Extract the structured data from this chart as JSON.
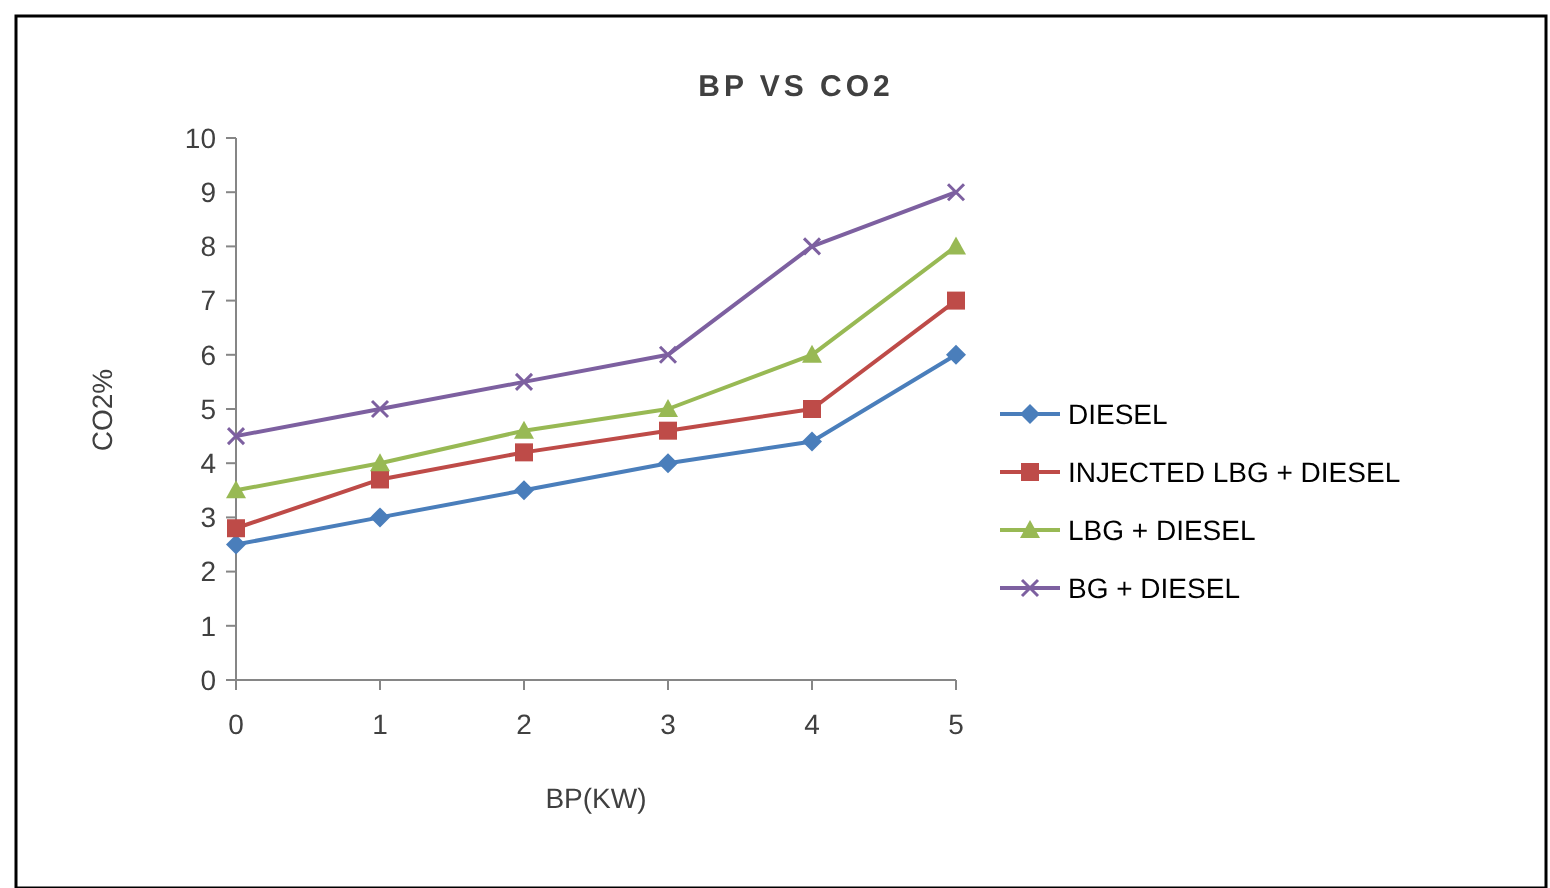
{
  "chart_data": {
    "type": "line",
    "title": "BP VS CO2",
    "xlabel": "BP(KW)",
    "ylabel": "CO2%",
    "x": [
      0,
      1,
      2,
      3,
      4,
      5
    ],
    "xlim": [
      0,
      5
    ],
    "xticks": [
      0,
      1,
      2,
      3,
      4,
      5
    ],
    "ylim": [
      0,
      10
    ],
    "yticks": [
      0,
      1,
      2,
      3,
      4,
      5,
      6,
      7,
      8,
      9,
      10
    ],
    "legend": "right",
    "grid": false,
    "line_style": "solid",
    "series": [
      {
        "name": "DIESEL",
        "color": "#4a7ebb",
        "marker": "diamond",
        "values": [
          2.5,
          3.0,
          3.5,
          4.0,
          4.4,
          6.0
        ]
      },
      {
        "name": "INJECTED LBG + DIESEL",
        "color": "#be4b48",
        "marker": "square",
        "values": [
          2.8,
          3.7,
          4.2,
          4.6,
          5.0,
          7.0
        ]
      },
      {
        "name": "LBG + DIESEL",
        "color": "#98b954",
        "marker": "triangle",
        "values": [
          3.5,
          4.0,
          4.6,
          5.0,
          6.0,
          8.0
        ]
      },
      {
        "name": "BG + DIESEL",
        "color": "#7d60a0",
        "marker": "cross",
        "values": [
          4.5,
          5.0,
          5.5,
          6.0,
          8.0,
          9.0
        ]
      }
    ]
  }
}
